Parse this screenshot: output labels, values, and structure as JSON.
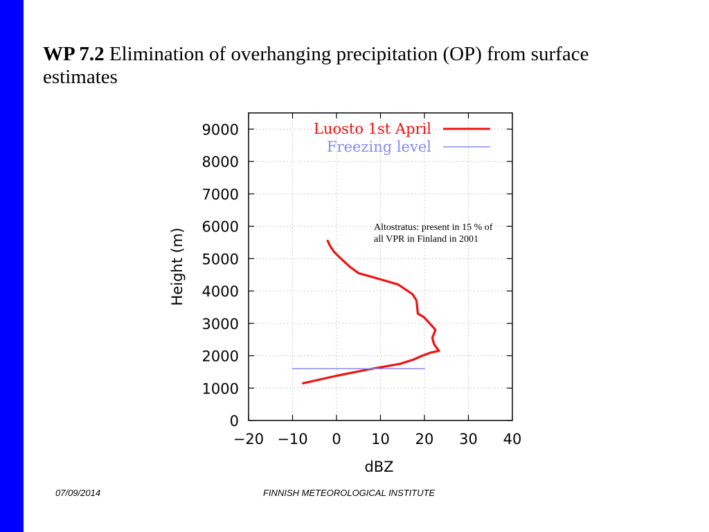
{
  "slide": {
    "title_bold": "WP 7.2",
    "title_rest": " Elimination of overhanging precipitation (OP) from surface estimates",
    "annotation": "Altostratus: present in 15 % of all VPR in Finland in 2001",
    "footer_date": "07/09/2014",
    "footer_institute": "FINNISH METEOROLOGICAL INSTITUTE",
    "side_bar_color": "#0000ff"
  },
  "chart_data": {
    "type": "line",
    "xlabel": "dBZ",
    "ylabel": "Height (m)",
    "xlim": [
      -20,
      40
    ],
    "ylim": [
      0,
      9500
    ],
    "xticks": [
      -20,
      -10,
      0,
      10,
      20,
      30,
      40
    ],
    "yticks": [
      0,
      1000,
      2000,
      3000,
      4000,
      5000,
      6000,
      7000,
      8000,
      9000
    ],
    "grid": true,
    "legend_position": "top-right",
    "series": [
      {
        "name": "Luosto 1st April",
        "color": "#ee1111",
        "x": [
          -7.6,
          0,
          7,
          14.5,
          17.5,
          19.5,
          21.5,
          23.3,
          22.2,
          21.8,
          22.5,
          21.2,
          19.8,
          18.5,
          18.2,
          17.3,
          14,
          9,
          5,
          3,
          1,
          -0.5,
          -1.5,
          -2
        ],
        "y": [
          1150,
          1380,
          1570,
          1750,
          1880,
          2000,
          2100,
          2150,
          2350,
          2550,
          2800,
          3000,
          3200,
          3300,
          3700,
          3900,
          4200,
          4400,
          4550,
          4750,
          5000,
          5200,
          5400,
          5550
        ]
      },
      {
        "name": "Freezing level",
        "color": "#8888ee",
        "x": [
          -10,
          20
        ],
        "y": [
          1600,
          1600
        ]
      }
    ]
  }
}
